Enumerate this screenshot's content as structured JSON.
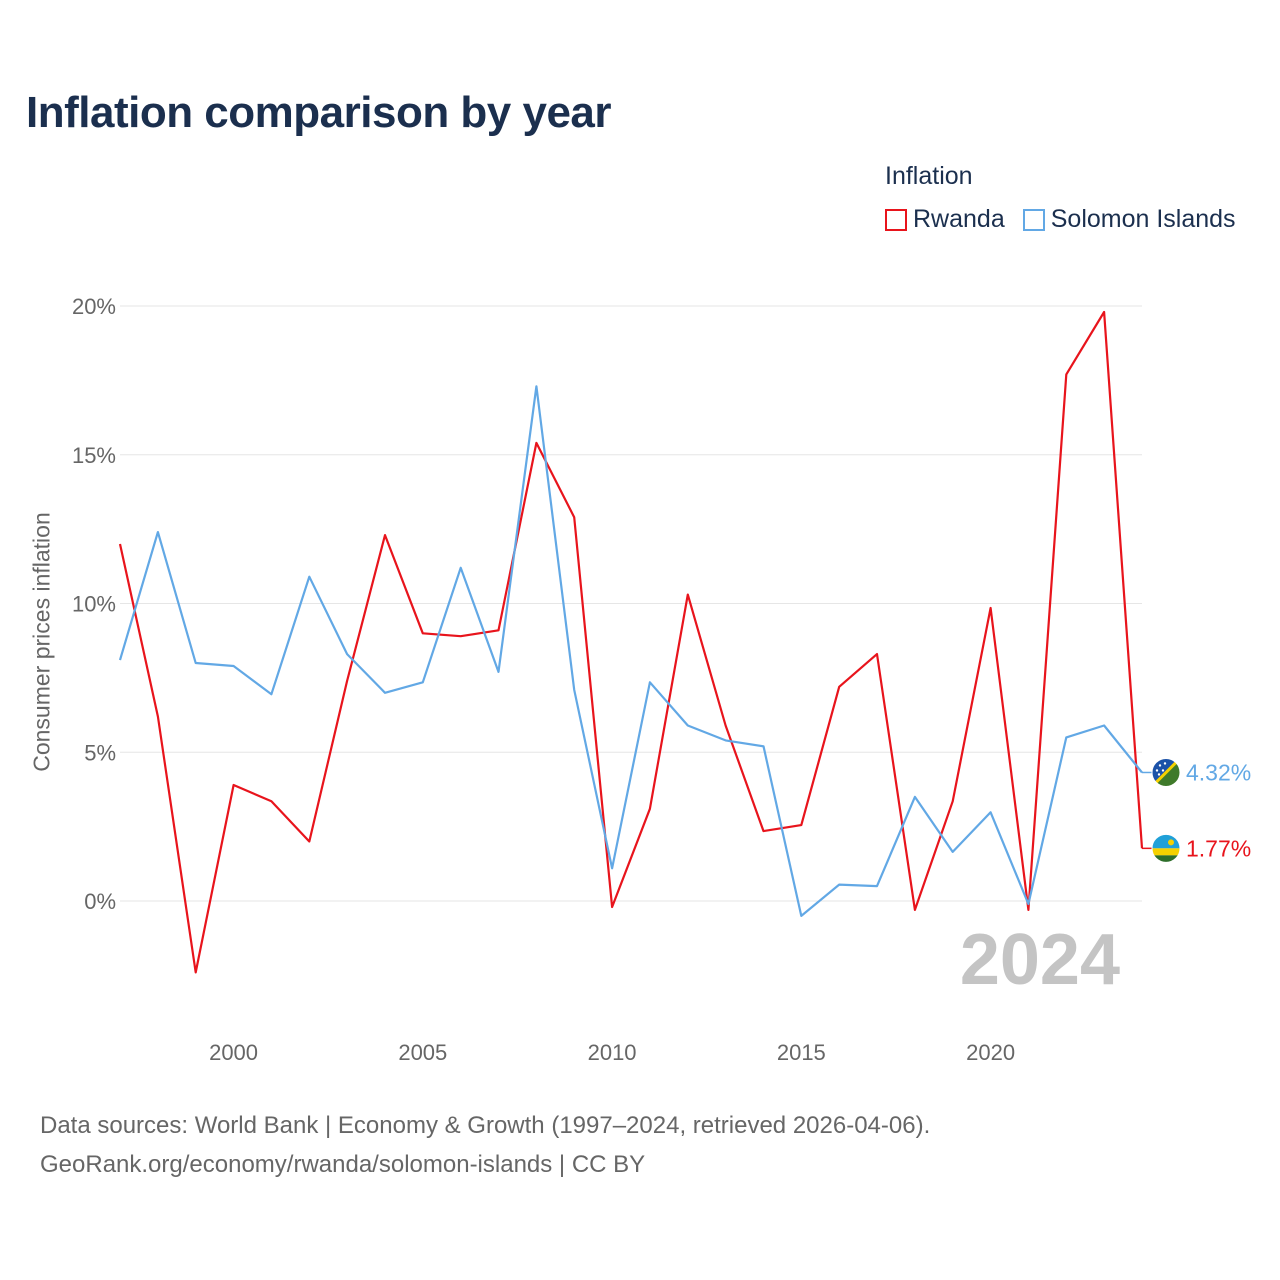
{
  "title": "Inflation comparison by year",
  "legend": {
    "title": "Inflation",
    "items": [
      {
        "name": "Rwanda",
        "color": "#e8141c"
      },
      {
        "name": "Solomon Islands",
        "color": "#62a8e5"
      }
    ]
  },
  "footer": {
    "line1": "Data sources: World Bank | Economy & Growth (1997–2024, retrieved 2026-04-06).",
    "line2": "GeoRank.org/economy/rwanda/solomon-islands | CC BY"
  },
  "chart_data": {
    "type": "line",
    "title": "Inflation comparison by year",
    "xlabel": "",
    "ylabel": "Consumer prices inflation",
    "x": [
      1997,
      1998,
      1999,
      2000,
      2001,
      2002,
      2003,
      2004,
      2005,
      2006,
      2007,
      2008,
      2009,
      2010,
      2011,
      2012,
      2013,
      2014,
      2015,
      2016,
      2017,
      2018,
      2019,
      2020,
      2021,
      2022,
      2023,
      2024
    ],
    "xlim": [
      1997,
      2024
    ],
    "ylim": [
      -3,
      20
    ],
    "x_ticks": [
      2000,
      2005,
      2010,
      2015,
      2020
    ],
    "x_tick_labels": [
      "2000",
      "2005",
      "2010",
      "2015",
      "2020"
    ],
    "y_ticks": [
      0,
      5,
      10,
      15,
      20
    ],
    "y_tick_labels": [
      "0%",
      "5%",
      "10%",
      "15%",
      "20%"
    ],
    "grid": true,
    "year_watermark": "2024",
    "series": [
      {
        "name": "Rwanda",
        "color": "#e8141c",
        "end_label": "1.77%",
        "values": [
          12.0,
          6.2,
          -2.4,
          3.9,
          3.35,
          2.0,
          7.4,
          12.3,
          9.0,
          8.9,
          9.1,
          15.4,
          12.9,
          -0.2,
          3.1,
          10.3,
          5.9,
          2.35,
          2.55,
          7.2,
          8.3,
          -0.3,
          3.35,
          9.85,
          -0.3,
          17.7,
          19.8,
          1.77
        ]
      },
      {
        "name": "Solomon Islands",
        "color": "#62a8e5",
        "end_label": "4.32%",
        "values": [
          8.1,
          12.4,
          8.0,
          7.9,
          6.95,
          10.9,
          8.3,
          7.0,
          7.35,
          11.2,
          7.7,
          17.3,
          7.1,
          1.1,
          7.35,
          5.9,
          5.4,
          5.2,
          -0.5,
          0.55,
          0.5,
          3.5,
          1.65,
          2.98,
          -0.1,
          5.5,
          5.9,
          4.32
        ]
      }
    ]
  }
}
